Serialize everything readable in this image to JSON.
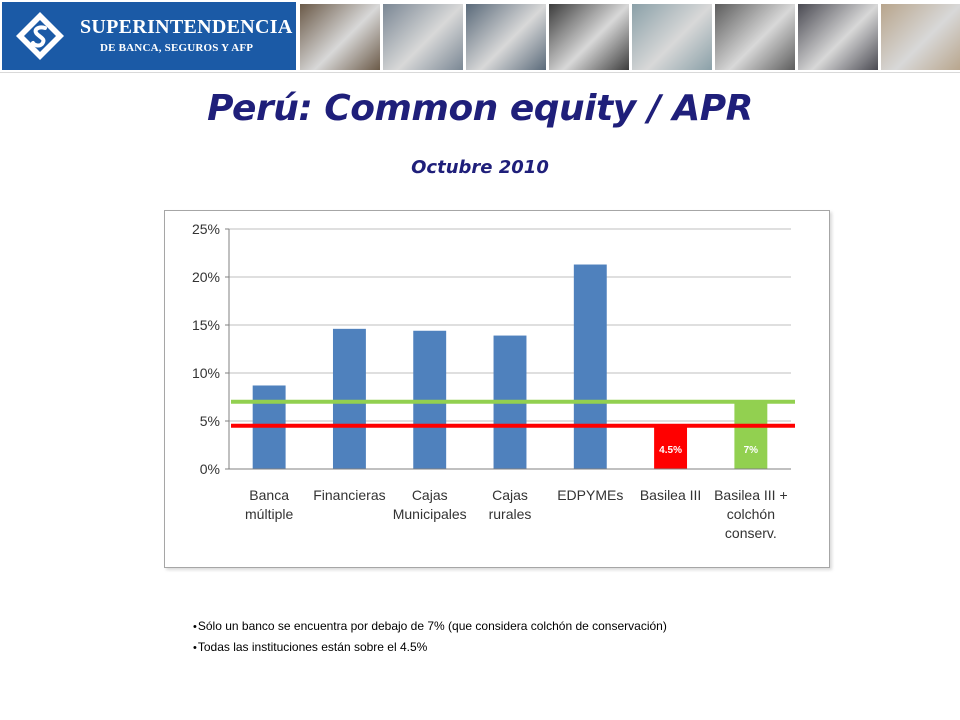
{
  "header": {
    "logo_name": "SUPERINTENDENCIA",
    "logo_sub": "DE BANCA, SEGUROS Y AFP",
    "logo_icon": "sbs-diamond-logo",
    "photos": [
      {
        "icon": "photo-credit-card",
        "color": "#6b5a48"
      },
      {
        "icon": "photo-building",
        "color": "#7a8794"
      },
      {
        "icon": "photo-keyboard-enter",
        "color": "#5a6a7a"
      },
      {
        "icon": "photo-handshake",
        "color": "#3c3c3c"
      },
      {
        "icon": "photo-banknotes",
        "color": "#8aa0a8"
      },
      {
        "icon": "photo-card-terminal",
        "color": "#5c5c5c"
      },
      {
        "icon": "photo-business-meeting",
        "color": "#4a4a52"
      },
      {
        "icon": "photo-signing-document",
        "color": "#b8a58c"
      }
    ]
  },
  "title": "Perú: Common equity / APR",
  "subtitle": "Octubre 2010",
  "chart_data": {
    "type": "bar",
    "categories": [
      [
        "Banca",
        "múltiple"
      ],
      [
        "Financieras"
      ],
      [
        "Cajas",
        "Municipales"
      ],
      [
        "Cajas",
        "rurales"
      ],
      [
        "EDPYMEs"
      ],
      [
        "Basilea III"
      ],
      [
        "Basilea III +",
        "colchón",
        "conserv."
      ]
    ],
    "values": [
      8.7,
      14.6,
      14.4,
      13.9,
      21.3,
      4.5,
      7.0
    ],
    "bar_colors": [
      "#4f81bd",
      "#4f81bd",
      "#4f81bd",
      "#4f81bd",
      "#4f81bd",
      "#ff0000",
      "#92d050"
    ],
    "data_labels": [
      "",
      "",
      "",
      "",
      "",
      "4.5%",
      "7%"
    ],
    "reference_lines": [
      {
        "value": 7.0,
        "color": "#92d050"
      },
      {
        "value": 4.5,
        "color": "#ff0000"
      }
    ],
    "ylim": [
      0,
      25
    ],
    "yticks": [
      0,
      5,
      10,
      15,
      20,
      25
    ],
    "ytick_labels": [
      "0%",
      "5%",
      "10%",
      "15%",
      "20%",
      "25%"
    ],
    "grid": true,
    "legend": "none"
  },
  "notes": [
    "Sólo un banco se encuentra por debajo de 7% (que considera colchón de conservación)",
    "Todas las instituciones están sobre el 4.5%"
  ]
}
